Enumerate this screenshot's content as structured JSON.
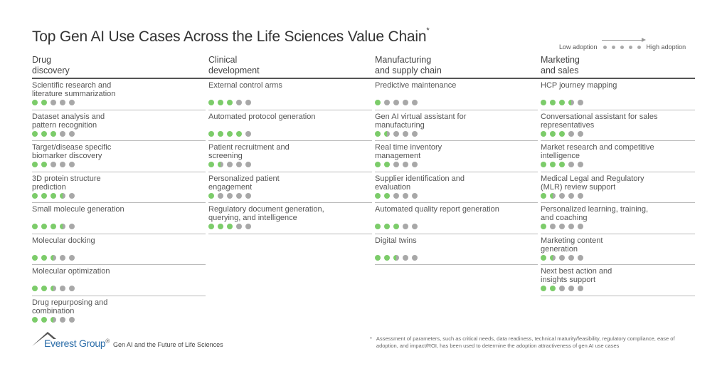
{
  "title": "Top Gen AI Use Cases Across the Life Sciences Value Chain",
  "title_mark": "*",
  "legend": {
    "low": "Low adoption",
    "high": "High adoption",
    "scale_max": 5
  },
  "colors": {
    "adopted": "#7ccc6a",
    "not_adopted": "#a8a8a8"
  },
  "columns": [
    {
      "header": "Drug\ndiscovery",
      "items": [
        {
          "label": "Scientific research and\nliterature summarization",
          "rating": 2
        },
        {
          "label": "Dataset analysis and\npattern recognition",
          "rating": 3
        },
        {
          "label": "Target/disease specific\nbiomarker discovery",
          "rating": 2
        },
        {
          "label": "3D protein structure\nprediction",
          "rating": 3.5
        },
        {
          "label": "Small molecule generation",
          "rating": 3.5
        },
        {
          "label": "Molecular docking",
          "rating": 2.5
        },
        {
          "label": "Molecular optimization",
          "rating": 2.5
        },
        {
          "label": "Drug repurposing and\ncombination",
          "rating": 2.5
        }
      ]
    },
    {
      "header": "Clinical\ndevelopment",
      "items": [
        {
          "label": "External control arms",
          "rating": 3
        },
        {
          "label": "Automated protocol generation",
          "rating": 4
        },
        {
          "label": "Patient recruitment and\nscreening",
          "rating": 1.5
        },
        {
          "label": "Personalized patient\nengagement",
          "rating": 1
        },
        {
          "label": "Regulatory document generation,\nquerying, and intelligence",
          "rating": 3
        }
      ]
    },
    {
      "header": "Manufacturing\nand supply chain",
      "items": [
        {
          "label": "Predictive maintenance",
          "rating": 1
        },
        {
          "label": "Gen AI virtual assistant for\nmanufacturing",
          "rating": 1.5
        },
        {
          "label": "Real time inventory\nmanagement",
          "rating": 2
        },
        {
          "label": "Supplier identification and\nevaluation",
          "rating": 2
        },
        {
          "label": "Automated quality report generation",
          "rating": 3
        },
        {
          "label": "Digital twins",
          "rating": 2.5
        }
      ]
    },
    {
      "header": "Marketing\nand sales",
      "items": [
        {
          "label": "HCP journey mapping",
          "rating": 3.5
        },
        {
          "label": "Conversational assistant for sales\nrepresentatives",
          "rating": 3
        },
        {
          "label": "Market research and competitive\nintelligence",
          "rating": 3
        },
        {
          "label": "Medical Legal and Regulatory\n(MLR) review support",
          "rating": 1.5
        },
        {
          "label": "Personalized learning, training,\nand coaching",
          "rating": 1
        },
        {
          "label": "Marketing content\ngeneration",
          "rating": 1.5
        },
        {
          "label": "Next best action and\ninsights support",
          "rating": 2
        }
      ]
    }
  ],
  "footer": {
    "brand": "Everest Group",
    "brand_mark": "®",
    "subtitle": "Gen AI and the Future of Life Sciences",
    "footnote_mark": "*",
    "footnote": "Assessment of parameters, such as critical needs, data readiness, technical maturity/feasibility, regulatory compliance, ease of adoption, and impact/ROI, has been used to determine the adoption attractiveness of gen AI use cases"
  }
}
